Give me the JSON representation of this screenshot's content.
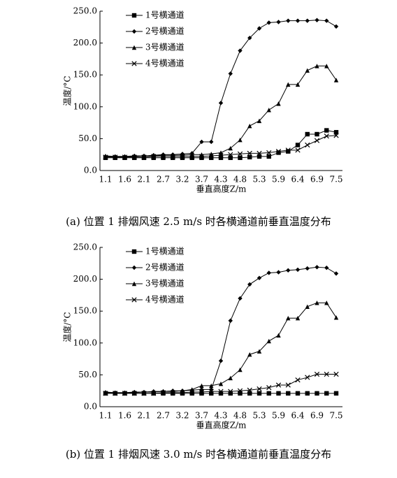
{
  "chart_data": [
    {
      "type": "line",
      "title": "(a) 位置 1 排烟风速 2.5 m/s 时各横通道前垂直温度分布",
      "x_label": "垂直高度Z/m",
      "y_label": "温度/°C",
      "categories": [
        "1.1",
        null,
        "1.6",
        null,
        "2.1",
        null,
        "2.7",
        null,
        "3.2",
        null,
        "3.7",
        null,
        "4.3",
        null,
        "4.8",
        null,
        "5.3",
        null,
        "5.9",
        null,
        "6.4",
        null,
        "6.9",
        null,
        "7.5"
      ],
      "ylim": [
        0,
        250
      ],
      "yticks": [
        {
          "value": 0,
          "label": "0.0"
        },
        {
          "value": 50,
          "label": "50.0"
        },
        {
          "value": 100,
          "label": "100.0"
        },
        {
          "value": 150,
          "label": "150.0"
        },
        {
          "value": 200,
          "label": "200.0"
        },
        {
          "value": 250,
          "label": "250.0"
        }
      ],
      "legend": "top-left",
      "series": [
        {
          "name": "1号横通道",
          "color": "#000000",
          "marker": "square",
          "values": [
            20,
            20,
            20,
            20,
            20,
            20,
            20,
            20,
            20,
            20,
            20,
            20,
            20,
            20,
            20,
            21,
            22,
            22,
            28,
            30,
            40,
            57,
            57,
            63,
            60
          ]
        },
        {
          "name": "2号横通道",
          "color": "#000000",
          "marker": "diamond",
          "values": [
            22,
            22,
            22,
            23,
            23,
            24,
            25,
            25,
            26,
            27,
            45,
            45,
            106,
            152,
            188,
            208,
            223,
            232,
            233,
            235,
            235,
            235,
            236,
            235,
            226
          ]
        },
        {
          "name": "3号横通道",
          "color": "#000000",
          "marker": "triangle",
          "values": [
            23,
            22,
            22,
            22,
            23,
            23,
            24,
            24,
            24,
            25,
            25,
            26,
            28,
            35,
            48,
            70,
            78,
            95,
            105,
            135,
            135,
            157,
            164,
            164,
            142
          ]
        },
        {
          "name": "4号横通道",
          "color": "#000000",
          "marker": "x",
          "values": [
            21,
            21,
            21,
            21,
            21,
            22,
            22,
            22,
            22,
            22,
            22,
            23,
            24,
            25,
            26,
            27,
            27,
            28,
            30,
            32,
            32,
            40,
            47,
            54,
            55
          ]
        }
      ]
    },
    {
      "type": "line",
      "title": "(b) 位置 1 排烟风速 3.0 m/s 时各横通道前垂直温度分布",
      "x_label": "垂直高度Z/m",
      "y_label": "温度/°C",
      "categories": [
        "1.1",
        null,
        "1.6",
        null,
        "2.1",
        null,
        "2.7",
        null,
        "3.2",
        null,
        "3.7",
        null,
        "4.3",
        null,
        "4.8",
        null,
        "5.3",
        null,
        "5.9",
        null,
        "6.4",
        null,
        "6.9",
        null,
        "7.5"
      ],
      "ylim": [
        0,
        250
      ],
      "yticks": [
        {
          "value": 0,
          "label": "0.0"
        },
        {
          "value": 50,
          "label": "50.0"
        },
        {
          "value": 100,
          "label": "100.0"
        },
        {
          "value": 150,
          "label": "150.0"
        },
        {
          "value": 200,
          "label": "200.0"
        },
        {
          "value": 250,
          "label": "250.0"
        }
      ],
      "legend": "top-left",
      "series": [
        {
          "name": "1号横通道",
          "color": "#000000",
          "marker": "square",
          "values": [
            21,
            21,
            21,
            21,
            21,
            21,
            21,
            21,
            21,
            21,
            21,
            21,
            21,
            21,
            21,
            21,
            21,
            21,
            21,
            21,
            21,
            21,
            21,
            21,
            21
          ]
        },
        {
          "name": "2号横通道",
          "color": "#000000",
          "marker": "diamond",
          "values": [
            22,
            22,
            22,
            23,
            23,
            24,
            24,
            25,
            25,
            26,
            27,
            27,
            72,
            135,
            170,
            192,
            202,
            210,
            211,
            214,
            215,
            217,
            219,
            218,
            209
          ]
        },
        {
          "name": "3号横通道",
          "color": "#000000",
          "marker": "triangle",
          "values": [
            23,
            22,
            22,
            22,
            23,
            23,
            24,
            24,
            25,
            27,
            33,
            33,
            36,
            45,
            58,
            82,
            87,
            103,
            112,
            139,
            139,
            157,
            163,
            163,
            140
          ]
        },
        {
          "name": "4号横通道",
          "color": "#000000",
          "marker": "x",
          "values": [
            21,
            21,
            21,
            21,
            21,
            21,
            22,
            22,
            22,
            23,
            23,
            24,
            24,
            24,
            25,
            26,
            28,
            30,
            34,
            34,
            42,
            46,
            51,
            51,
            51
          ]
        }
      ]
    }
  ]
}
